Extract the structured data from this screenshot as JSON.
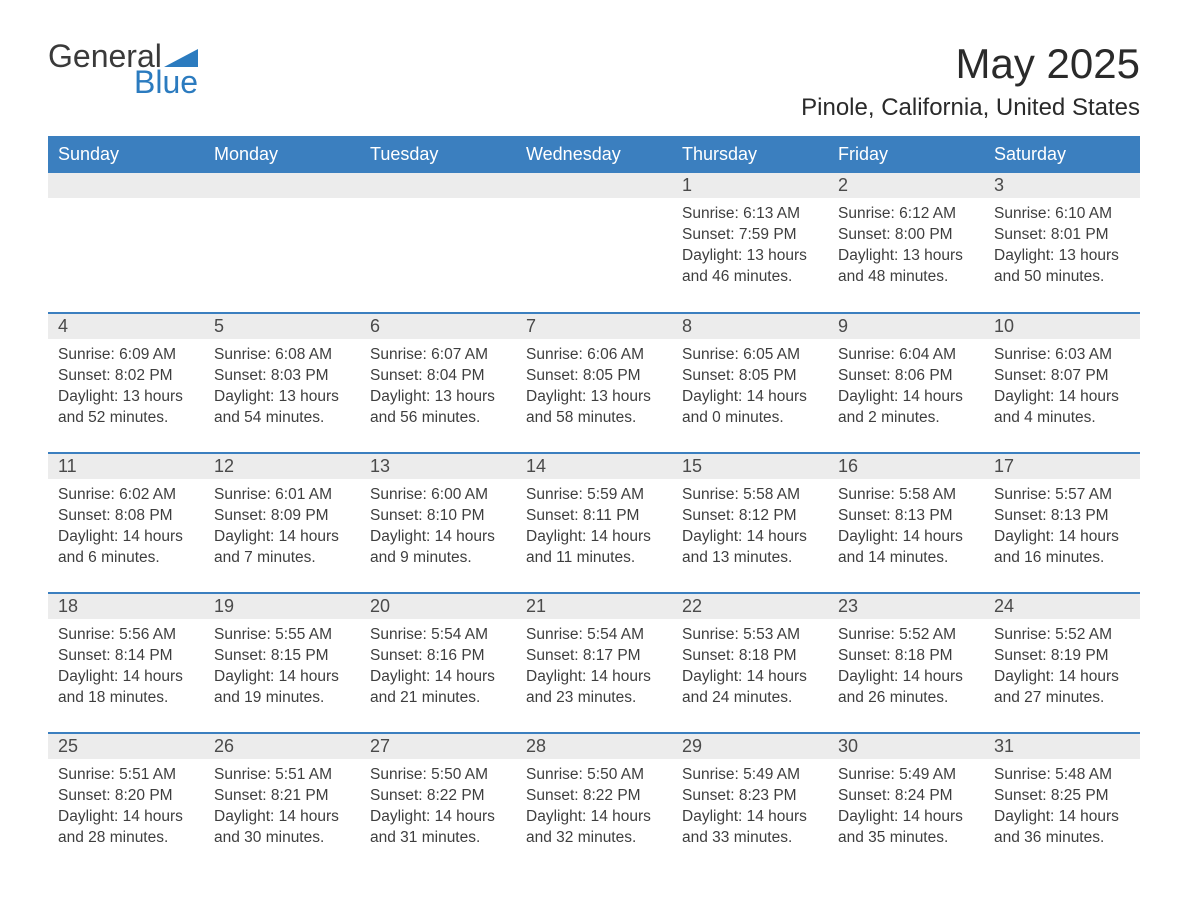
{
  "logo": {
    "word1": "General",
    "word2": "Blue",
    "triangle_color": "#2b7bbf"
  },
  "title": "May 2025",
  "location": "Pinole, California, United States",
  "header_bg": "#3b7fbf",
  "header_fg": "#ffffff",
  "daynum_bg": "#ececec",
  "daynum_fg": "#4a4a4a",
  "row_divider": "#3b7fbf",
  "text_color": "#3e3e3e",
  "body_bg": "#ffffff",
  "font_family": "Arial, Helvetica, sans-serif",
  "title_fontsize": 42,
  "location_fontsize": 24,
  "dow_fontsize": 18,
  "daynum_fontsize": 18,
  "data_fontsize": 15.5,
  "days_of_week": [
    "Sunday",
    "Monday",
    "Tuesday",
    "Wednesday",
    "Thursday",
    "Friday",
    "Saturday"
  ],
  "weeks": [
    [
      null,
      null,
      null,
      null,
      {
        "n": "1",
        "sunrise": "6:13 AM",
        "sunset": "7:59 PM",
        "daylight": "13 hours and 46 minutes."
      },
      {
        "n": "2",
        "sunrise": "6:12 AM",
        "sunset": "8:00 PM",
        "daylight": "13 hours and 48 minutes."
      },
      {
        "n": "3",
        "sunrise": "6:10 AM",
        "sunset": "8:01 PM",
        "daylight": "13 hours and 50 minutes."
      }
    ],
    [
      {
        "n": "4",
        "sunrise": "6:09 AM",
        "sunset": "8:02 PM",
        "daylight": "13 hours and 52 minutes."
      },
      {
        "n": "5",
        "sunrise": "6:08 AM",
        "sunset": "8:03 PM",
        "daylight": "13 hours and 54 minutes."
      },
      {
        "n": "6",
        "sunrise": "6:07 AM",
        "sunset": "8:04 PM",
        "daylight": "13 hours and 56 minutes."
      },
      {
        "n": "7",
        "sunrise": "6:06 AM",
        "sunset": "8:05 PM",
        "daylight": "13 hours and 58 minutes."
      },
      {
        "n": "8",
        "sunrise": "6:05 AM",
        "sunset": "8:05 PM",
        "daylight": "14 hours and 0 minutes."
      },
      {
        "n": "9",
        "sunrise": "6:04 AM",
        "sunset": "8:06 PM",
        "daylight": "14 hours and 2 minutes."
      },
      {
        "n": "10",
        "sunrise": "6:03 AM",
        "sunset": "8:07 PM",
        "daylight": "14 hours and 4 minutes."
      }
    ],
    [
      {
        "n": "11",
        "sunrise": "6:02 AM",
        "sunset": "8:08 PM",
        "daylight": "14 hours and 6 minutes."
      },
      {
        "n": "12",
        "sunrise": "6:01 AM",
        "sunset": "8:09 PM",
        "daylight": "14 hours and 7 minutes."
      },
      {
        "n": "13",
        "sunrise": "6:00 AM",
        "sunset": "8:10 PM",
        "daylight": "14 hours and 9 minutes."
      },
      {
        "n": "14",
        "sunrise": "5:59 AM",
        "sunset": "8:11 PM",
        "daylight": "14 hours and 11 minutes."
      },
      {
        "n": "15",
        "sunrise": "5:58 AM",
        "sunset": "8:12 PM",
        "daylight": "14 hours and 13 minutes."
      },
      {
        "n": "16",
        "sunrise": "5:58 AM",
        "sunset": "8:13 PM",
        "daylight": "14 hours and 14 minutes."
      },
      {
        "n": "17",
        "sunrise": "5:57 AM",
        "sunset": "8:13 PM",
        "daylight": "14 hours and 16 minutes."
      }
    ],
    [
      {
        "n": "18",
        "sunrise": "5:56 AM",
        "sunset": "8:14 PM",
        "daylight": "14 hours and 18 minutes."
      },
      {
        "n": "19",
        "sunrise": "5:55 AM",
        "sunset": "8:15 PM",
        "daylight": "14 hours and 19 minutes."
      },
      {
        "n": "20",
        "sunrise": "5:54 AM",
        "sunset": "8:16 PM",
        "daylight": "14 hours and 21 minutes."
      },
      {
        "n": "21",
        "sunrise": "5:54 AM",
        "sunset": "8:17 PM",
        "daylight": "14 hours and 23 minutes."
      },
      {
        "n": "22",
        "sunrise": "5:53 AM",
        "sunset": "8:18 PM",
        "daylight": "14 hours and 24 minutes."
      },
      {
        "n": "23",
        "sunrise": "5:52 AM",
        "sunset": "8:18 PM",
        "daylight": "14 hours and 26 minutes."
      },
      {
        "n": "24",
        "sunrise": "5:52 AM",
        "sunset": "8:19 PM",
        "daylight": "14 hours and 27 minutes."
      }
    ],
    [
      {
        "n": "25",
        "sunrise": "5:51 AM",
        "sunset": "8:20 PM",
        "daylight": "14 hours and 28 minutes."
      },
      {
        "n": "26",
        "sunrise": "5:51 AM",
        "sunset": "8:21 PM",
        "daylight": "14 hours and 30 minutes."
      },
      {
        "n": "27",
        "sunrise": "5:50 AM",
        "sunset": "8:22 PM",
        "daylight": "14 hours and 31 minutes."
      },
      {
        "n": "28",
        "sunrise": "5:50 AM",
        "sunset": "8:22 PM",
        "daylight": "14 hours and 32 minutes."
      },
      {
        "n": "29",
        "sunrise": "5:49 AM",
        "sunset": "8:23 PM",
        "daylight": "14 hours and 33 minutes."
      },
      {
        "n": "30",
        "sunrise": "5:49 AM",
        "sunset": "8:24 PM",
        "daylight": "14 hours and 35 minutes."
      },
      {
        "n": "31",
        "sunrise": "5:48 AM",
        "sunset": "8:25 PM",
        "daylight": "14 hours and 36 minutes."
      }
    ]
  ],
  "labels": {
    "sunrise": "Sunrise: ",
    "sunset": "Sunset: ",
    "daylight": "Daylight: "
  }
}
